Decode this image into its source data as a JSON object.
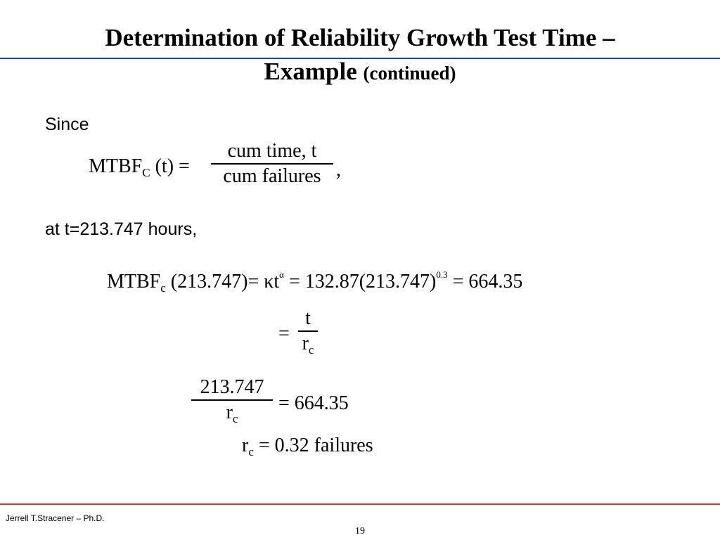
{
  "slide": {
    "title_line1": "Determination of Reliability Growth Test Time –",
    "title_line2_main": "Example",
    "title_line2_small": "(continued)"
  },
  "body": {
    "since": "Since",
    "at_t": "at t=213.747 hours,",
    "eq1": {
      "lhs": "MTBF",
      "lhs_sub": "C",
      "lhs_arg": "(t) =",
      "num": "cum time, t",
      "den": "cum failures",
      "trailing": ","
    },
    "eq2": {
      "lhs": "MTBF",
      "lhs_sub": "c",
      "mid": "(213.747)= κt",
      "mid_sup": "α",
      "rhs": "= 132.87(213.747)",
      "rhs_sup": "0.3",
      "result": "= 664.35"
    },
    "eq3": {
      "eq": "=",
      "num": "t",
      "den": "r",
      "den_sub": "c"
    },
    "eq4": {
      "num": "213.747",
      "den": "r",
      "den_sub": "c",
      "result": "= 664.35"
    },
    "eq5": {
      "lhs": "r",
      "lhs_sub": "c",
      "rhs": "= 0.32 failures"
    }
  },
  "footer": {
    "author": "Jerrell T.Stracener – Ph.D.",
    "page": "19"
  }
}
